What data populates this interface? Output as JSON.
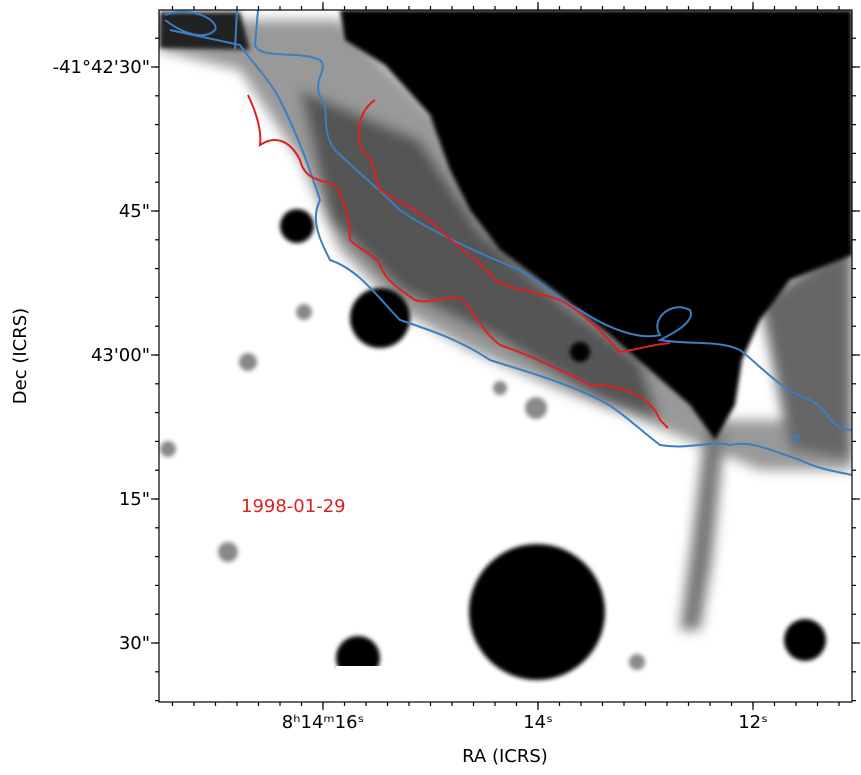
{
  "figure": {
    "x_axis": {
      "label": "RA (ICRS)",
      "tick_labels": [
        "8ʰ14ᵐ16ˢ",
        "14ˢ",
        "12ˢ"
      ]
    },
    "y_axis": {
      "label": "Dec (ICRS)",
      "tick_labels": [
        "-41°42'30\"",
        "45\"",
        "43'00\"",
        "15\"",
        "30\""
      ]
    },
    "annotation": "1998-01-29"
  }
}
